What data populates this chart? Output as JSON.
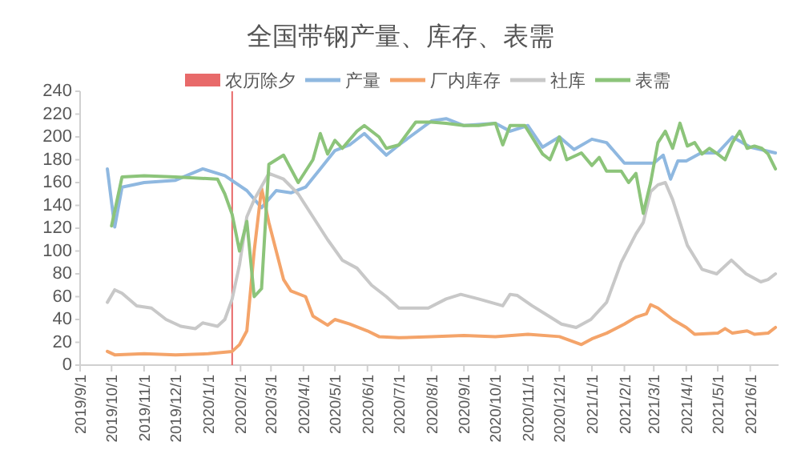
{
  "chart_data": {
    "type": "line",
    "title": "全国带钢产量、库存、表需",
    "legend": "top",
    "grid": false,
    "marker": "none",
    "line_style": "solid",
    "ylim": [
      0,
      240
    ],
    "yticks": [
      0,
      20,
      40,
      60,
      80,
      100,
      120,
      140,
      160,
      180,
      200,
      220,
      240
    ],
    "xlim": [
      "2019-09-01",
      "2021-06-28"
    ],
    "xticks": [
      {
        "value": "2019-09-01",
        "label": "2019/9/1"
      },
      {
        "value": "2019-10-01",
        "label": "2019/10/1"
      },
      {
        "value": "2019-11-01",
        "label": "2019/11/1"
      },
      {
        "value": "2019-12-01",
        "label": "2019/12/1"
      },
      {
        "value": "2020-01-01",
        "label": "2020/1/1"
      },
      {
        "value": "2020-02-01",
        "label": "2020/2/1"
      },
      {
        "value": "2020-03-01",
        "label": "2020/3/1"
      },
      {
        "value": "2020-04-01",
        "label": "2020/4/1"
      },
      {
        "value": "2020-05-01",
        "label": "2020/5/1"
      },
      {
        "value": "2020-06-01",
        "label": "2020/6/1"
      },
      {
        "value": "2020-07-01",
        "label": "2020/7/1"
      },
      {
        "value": "2020-08-01",
        "label": "2020/8/1"
      },
      {
        "value": "2020-09-01",
        "label": "2020/9/1"
      },
      {
        "value": "2020-10-01",
        "label": "2020/10/1"
      },
      {
        "value": "2020-11-01",
        "label": "2020/11/1"
      },
      {
        "value": "2020-12-01",
        "label": "2020/12/1"
      },
      {
        "value": "2021-01-01",
        "label": "2021/1/1"
      },
      {
        "value": "2021-02-01",
        "label": "2021/2/1"
      },
      {
        "value": "2021-03-01",
        "label": "2021/3/1"
      },
      {
        "value": "2021-04-01",
        "label": "2021/4/1"
      },
      {
        "value": "2021-05-01",
        "label": "2021/5/1"
      },
      {
        "value": "2021-06-01",
        "label": "2021/6/1"
      }
    ],
    "ref_lines": [
      {
        "axis": "x",
        "value": "2020-01-24",
        "label": "农历除夕",
        "color": "#e86a6a"
      }
    ],
    "series": [
      {
        "name": "产量",
        "color": "#8fb8e0",
        "x": [
          "2019-09-27",
          "2019-10-04",
          "2019-10-11",
          "2019-11-01",
          "2019-12-01",
          "2019-12-27",
          "2020-01-17",
          "2020-02-07",
          "2020-02-21",
          "2020-03-06",
          "2020-03-20",
          "2020-04-03",
          "2020-04-17",
          "2020-05-01",
          "2020-05-15",
          "2020-05-29",
          "2020-06-19",
          "2020-07-01",
          "2020-08-01",
          "2020-08-15",
          "2020-09-01",
          "2020-10-01",
          "2020-10-15",
          "2020-11-01",
          "2020-11-15",
          "2020-12-01",
          "2020-12-15",
          "2021-01-01",
          "2021-01-15",
          "2021-02-01",
          "2021-02-15",
          "2021-03-01",
          "2021-03-10",
          "2021-03-17",
          "2021-03-24",
          "2021-04-01",
          "2021-04-15",
          "2021-05-01",
          "2021-05-15",
          "2021-06-01",
          "2021-06-25"
        ],
        "values": [
          172,
          121,
          156,
          160,
          162,
          172,
          166,
          153,
          138,
          153,
          151,
          156,
          172,
          188,
          193,
          203,
          184,
          193,
          214,
          216,
          210,
          212,
          205,
          210,
          191,
          200,
          189,
          198,
          195,
          177,
          177,
          177,
          184,
          163,
          179,
          179,
          186,
          186,
          200,
          191,
          186
        ]
      },
      {
        "name": "厂内库存",
        "color": "#f4a46a",
        "x": [
          "2019-09-27",
          "2019-10-04",
          "2019-11-01",
          "2019-12-01",
          "2020-01-01",
          "2020-01-24",
          "2020-01-31",
          "2020-02-07",
          "2020-02-14",
          "2020-02-21",
          "2020-02-28",
          "2020-03-06",
          "2020-03-13",
          "2020-03-20",
          "2020-04-03",
          "2020-04-10",
          "2020-04-24",
          "2020-05-01",
          "2020-05-15",
          "2020-06-01",
          "2020-06-12",
          "2020-07-01",
          "2020-08-01",
          "2020-09-01",
          "2020-10-01",
          "2020-11-01",
          "2020-12-01",
          "2020-12-22",
          "2021-01-01",
          "2021-01-15",
          "2021-02-01",
          "2021-02-12",
          "2021-02-22",
          "2021-02-26",
          "2021-03-05",
          "2021-03-19",
          "2021-04-01",
          "2021-04-09",
          "2021-05-01",
          "2021-05-08",
          "2021-05-15",
          "2021-05-29",
          "2021-06-05",
          "2021-06-18",
          "2021-06-25"
        ],
        "values": [
          12,
          9,
          10,
          9,
          10,
          12,
          18,
          30,
          100,
          155,
          125,
          100,
          75,
          65,
          60,
          43,
          35,
          40,
          36,
          30,
          25,
          24,
          25,
          26,
          25,
          27,
          25,
          18,
          23,
          28,
          36,
          42,
          45,
          53,
          50,
          40,
          33,
          27,
          28,
          32,
          28,
          30,
          27,
          28,
          33
        ]
      },
      {
        "name": "社库",
        "color": "#c8c8c8",
        "x": [
          "2019-09-27",
          "2019-10-04",
          "2019-10-11",
          "2019-10-25",
          "2019-11-08",
          "2019-11-22",
          "2019-12-06",
          "2019-12-20",
          "2019-12-27",
          "2020-01-10",
          "2020-01-17",
          "2020-01-24",
          "2020-01-31",
          "2020-02-07",
          "2020-02-14",
          "2020-02-28",
          "2020-03-13",
          "2020-03-27",
          "2020-04-10",
          "2020-04-24",
          "2020-05-08",
          "2020-05-22",
          "2020-06-05",
          "2020-06-19",
          "2020-07-01",
          "2020-07-29",
          "2020-08-15",
          "2020-08-29",
          "2020-09-15",
          "2020-10-08",
          "2020-10-15",
          "2020-10-22",
          "2020-11-05",
          "2020-11-19",
          "2020-12-03",
          "2020-12-17",
          "2020-12-31",
          "2021-01-15",
          "2021-01-29",
          "2021-02-12",
          "2021-02-19",
          "2021-02-26",
          "2021-03-05",
          "2021-03-12",
          "2021-03-19",
          "2021-04-02",
          "2021-04-16",
          "2021-04-30",
          "2021-05-14",
          "2021-05-28",
          "2021-06-11",
          "2021-06-18",
          "2021-06-25"
        ],
        "values": [
          55,
          66,
          63,
          52,
          50,
          40,
          34,
          32,
          37,
          34,
          40,
          58,
          88,
          130,
          145,
          168,
          163,
          150,
          130,
          110,
          92,
          85,
          70,
          60,
          50,
          50,
          58,
          62,
          58,
          52,
          62,
          61,
          52,
          44,
          36,
          33,
          40,
          55,
          90,
          115,
          125,
          152,
          158,
          160,
          145,
          105,
          84,
          80,
          92,
          80,
          73,
          75,
          80
        ]
      },
      {
        "name": "表需",
        "color": "#8cc47a",
        "x": [
          "2019-10-01",
          "2019-10-11",
          "2019-11-01",
          "2019-12-01",
          "2020-01-10",
          "2020-01-17",
          "2020-01-24",
          "2020-01-31",
          "2020-02-07",
          "2020-02-14",
          "2020-02-21",
          "2020-02-28",
          "2020-03-13",
          "2020-03-27",
          "2020-04-10",
          "2020-04-17",
          "2020-04-24",
          "2020-05-01",
          "2020-05-08",
          "2020-05-22",
          "2020-05-29",
          "2020-06-12",
          "2020-06-19",
          "2020-07-01",
          "2020-07-17",
          "2020-08-01",
          "2020-08-15",
          "2020-09-01",
          "2020-09-15",
          "2020-10-01",
          "2020-10-08",
          "2020-10-15",
          "2020-10-29",
          "2020-11-15",
          "2020-11-22",
          "2020-12-01",
          "2020-12-08",
          "2020-12-22",
          "2021-01-01",
          "2021-01-08",
          "2021-01-15",
          "2021-01-29",
          "2021-02-05",
          "2021-02-12",
          "2021-02-19",
          "2021-02-26",
          "2021-03-05",
          "2021-03-12",
          "2021-03-19",
          "2021-03-26",
          "2021-04-02",
          "2021-04-09",
          "2021-04-16",
          "2021-04-23",
          "2021-05-01",
          "2021-05-08",
          "2021-05-15",
          "2021-05-22",
          "2021-05-29",
          "2021-06-05",
          "2021-06-12",
          "2021-06-18",
          "2021-06-25"
        ],
        "values": [
          122,
          165,
          166,
          165,
          163,
          150,
          132,
          100,
          126,
          60,
          67,
          176,
          184,
          160,
          180,
          203,
          185,
          197,
          190,
          205,
          210,
          200,
          190,
          193,
          213,
          213,
          212,
          210,
          210,
          212,
          193,
          210,
          210,
          185,
          180,
          200,
          180,
          186,
          175,
          182,
          170,
          170,
          160,
          168,
          133,
          160,
          195,
          205,
          190,
          212,
          192,
          195,
          185,
          190,
          185,
          180,
          195,
          205,
          190,
          192,
          190,
          185,
          172
        ]
      }
    ]
  }
}
